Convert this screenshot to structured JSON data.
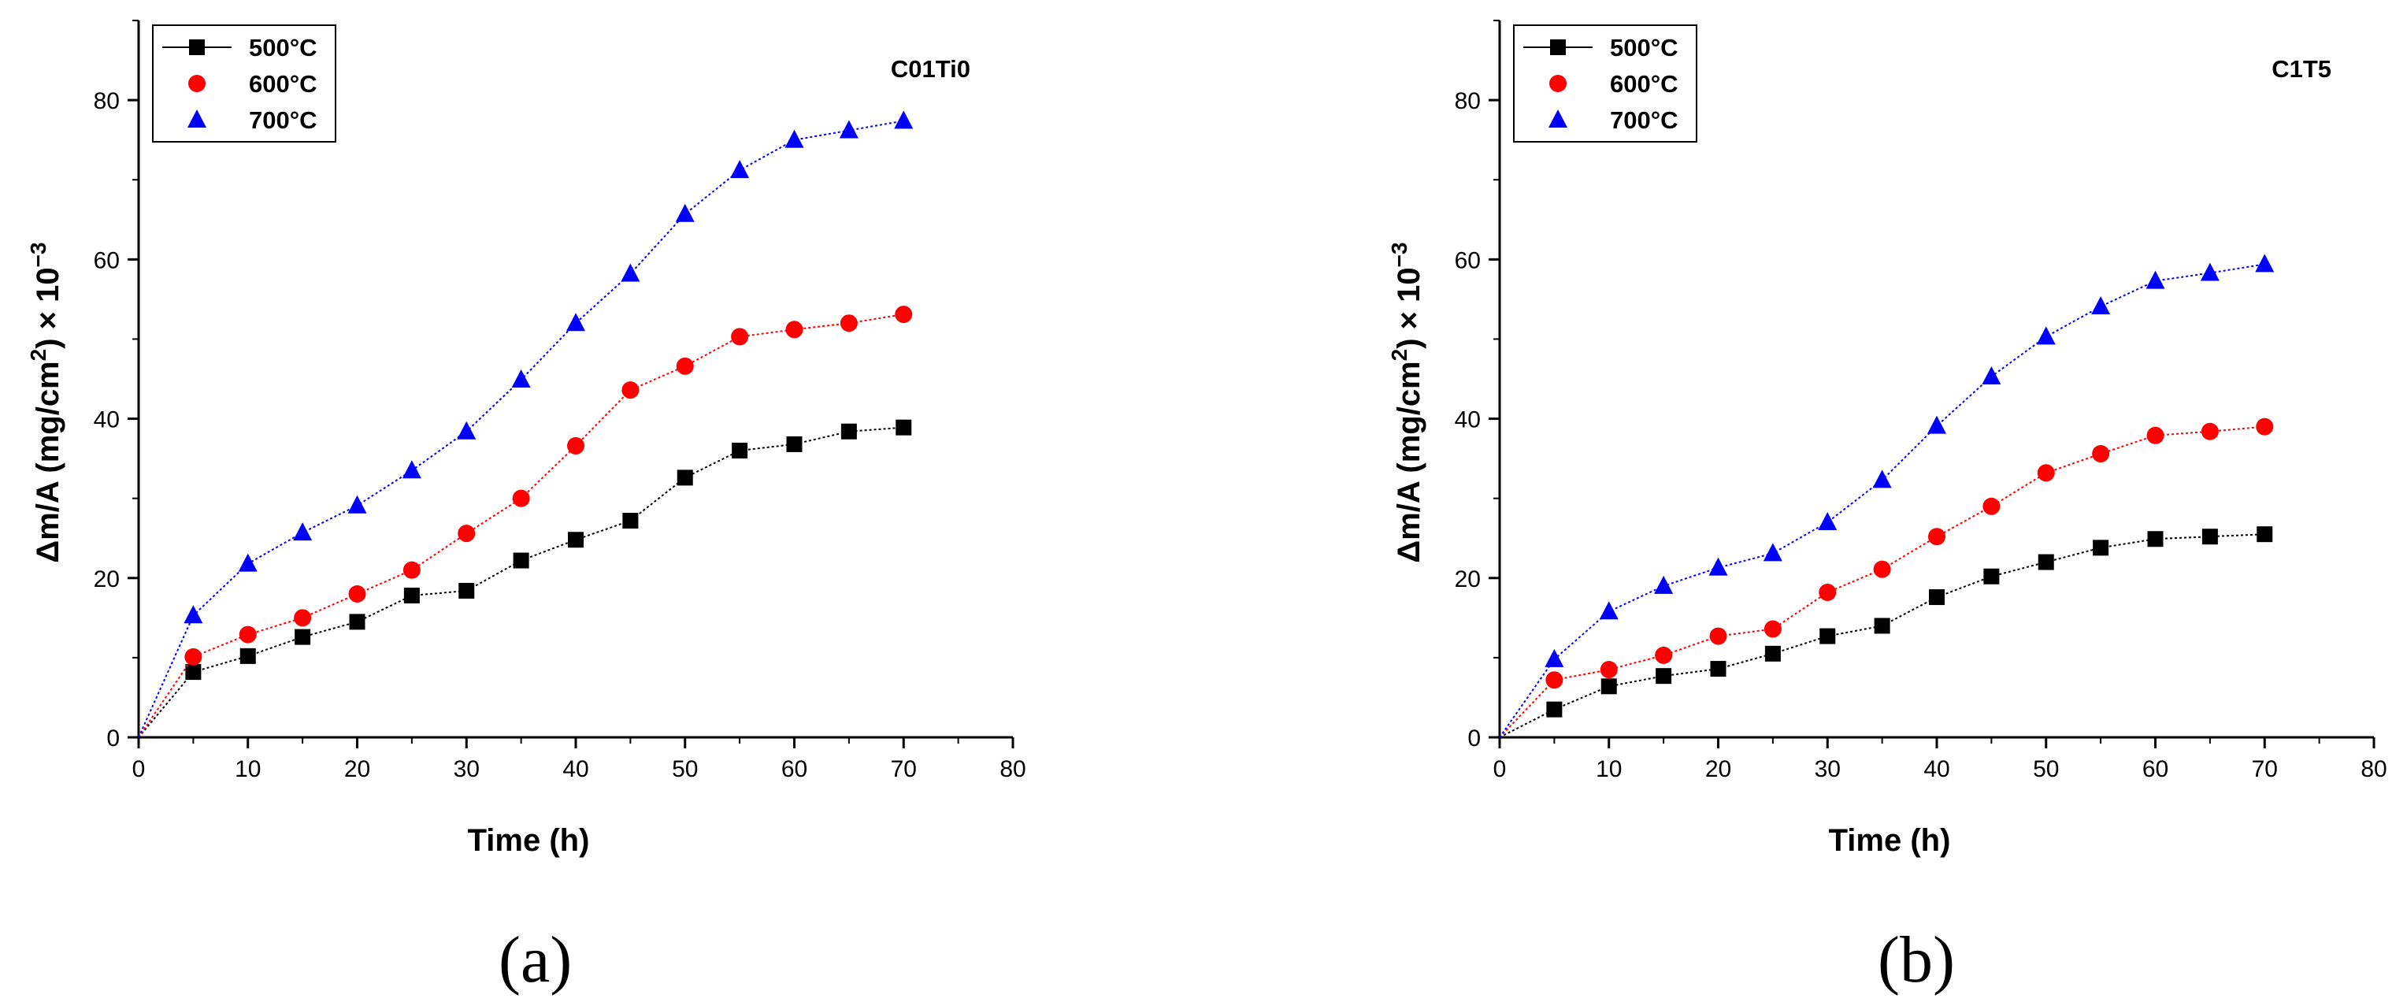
{
  "figure": {
    "panels": [
      {
        "label_open": "(",
        "label_letter": "a",
        "label_close": ")"
      },
      {
        "label_open": "(",
        "label_letter": "b",
        "label_close": ")"
      }
    ]
  },
  "chart_data": [
    {
      "type": "line",
      "title": "C01Ti0",
      "xlabel": "Time (h)",
      "ylabel_main": "Δm/A (mg/cm",
      "ylabel_sup": "2",
      "ylabel_tail": ") × 10",
      "ylabel_exp": "−3",
      "xlim": [
        0,
        80
      ],
      "ylim": [
        0,
        90
      ],
      "xticks": [
        0,
        10,
        20,
        30,
        40,
        50,
        60,
        70,
        80
      ],
      "yticks": [
        0,
        20,
        40,
        60,
        80
      ],
      "legend_position": "top-left",
      "series": [
        {
          "name": "500°C",
          "marker": "square",
          "color": "#000000",
          "x": [
            0,
            5,
            10,
            15,
            20,
            25,
            30,
            35,
            40,
            45,
            50,
            55,
            60,
            65,
            70
          ],
          "y": [
            0,
            8.2,
            10.2,
            12.6,
            14.5,
            17.8,
            18.4,
            22.2,
            24.8,
            27.2,
            32.6,
            36.0,
            36.8,
            38.4,
            38.9
          ]
        },
        {
          "name": "600°C",
          "marker": "circle",
          "color": "#ff0000",
          "x": [
            0,
            5,
            10,
            15,
            20,
            25,
            30,
            35,
            40,
            45,
            50,
            55,
            60,
            65,
            70
          ],
          "y": [
            0,
            10.1,
            12.9,
            15.0,
            18.0,
            21.0,
            25.6,
            30.0,
            36.6,
            43.6,
            46.6,
            50.3,
            51.2,
            52.0,
            53.1
          ]
        },
        {
          "name": "700°C",
          "marker": "triangle",
          "color": "#0000ff",
          "x": [
            0,
            5,
            10,
            15,
            20,
            25,
            30,
            35,
            40,
            45,
            50,
            55,
            60,
            65,
            70
          ],
          "y": [
            0,
            15.3,
            21.8,
            25.7,
            29.1,
            33.5,
            38.4,
            44.9,
            52.0,
            58.2,
            65.7,
            71.2,
            75.0,
            76.2,
            77.4
          ]
        }
      ]
    },
    {
      "type": "line",
      "title": "C1T5",
      "xlabel": "Time (h)",
      "ylabel_main": "Δm/A (mg/cm",
      "ylabel_sup": "2",
      "ylabel_tail": ") × 10",
      "ylabel_exp": "−3",
      "xlim": [
        0,
        80
      ],
      "ylim": [
        0,
        90
      ],
      "xticks": [
        0,
        10,
        20,
        30,
        40,
        50,
        60,
        70,
        80
      ],
      "yticks": [
        0,
        20,
        40,
        60,
        80
      ],
      "legend_position": "top-left",
      "series": [
        {
          "name": "500°C",
          "marker": "square",
          "color": "#000000",
          "x": [
            0,
            5,
            10,
            15,
            20,
            25,
            30,
            35,
            40,
            45,
            50,
            55,
            60,
            65,
            70
          ],
          "y": [
            0,
            3.5,
            6.4,
            7.7,
            8.6,
            10.5,
            12.7,
            14.0,
            17.6,
            20.2,
            22.0,
            23.8,
            24.9,
            25.2,
            25.5
          ]
        },
        {
          "name": "600°C",
          "marker": "circle",
          "color": "#ff0000",
          "x": [
            0,
            5,
            10,
            15,
            20,
            25,
            30,
            35,
            40,
            45,
            50,
            55,
            60,
            65,
            70
          ],
          "y": [
            0,
            7.2,
            8.5,
            10.3,
            12.7,
            13.6,
            18.2,
            21.1,
            25.2,
            29.0,
            33.2,
            35.6,
            37.9,
            38.4,
            39.0
          ]
        },
        {
          "name": "700°C",
          "marker": "triangle",
          "color": "#0000ff",
          "x": [
            0,
            5,
            10,
            15,
            20,
            25,
            30,
            35,
            40,
            45,
            50,
            55,
            60,
            65,
            70
          ],
          "y": [
            0,
            9.8,
            15.8,
            19.0,
            21.3,
            23.1,
            27.0,
            32.3,
            39.1,
            45.3,
            50.3,
            54.1,
            57.3,
            58.3,
            59.4
          ]
        }
      ]
    }
  ]
}
